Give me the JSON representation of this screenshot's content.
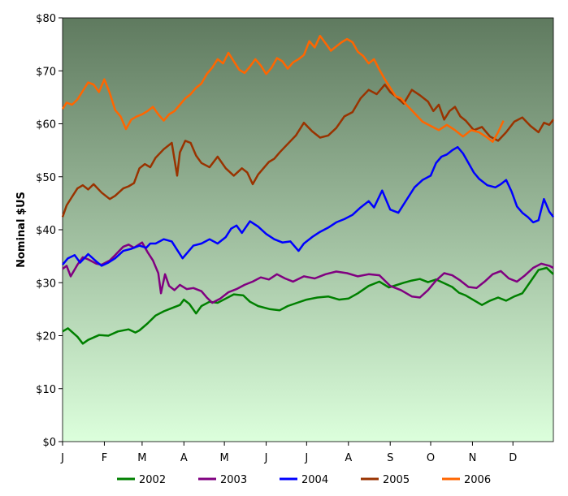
{
  "chart_data": {
    "type": "line",
    "title": "",
    "xlabel": "",
    "ylabel": "Nominal $US",
    "x_range": [
      1,
      365
    ],
    "x_unit": "day of year",
    "ylim": [
      0,
      80
    ],
    "y_ticks": [
      0,
      10,
      20,
      30,
      40,
      50,
      60,
      70,
      80
    ],
    "y_tick_labels": [
      "$0",
      "$10",
      "$20",
      "$30",
      "$40",
      "$50",
      "$60",
      "$70",
      "$80"
    ],
    "x_tick_labels": [
      "J",
      "F",
      "M",
      "A",
      "M",
      "J",
      "J",
      "A",
      "S",
      "O",
      "N",
      "D"
    ],
    "x_tick_days": [
      1,
      32,
      60,
      91,
      121,
      152,
      182,
      213,
      244,
      274,
      305,
      335
    ],
    "grid": false,
    "background_gradient": [
      "#5f7a5f",
      "#dcffdc"
    ],
    "legend": {
      "position": "bottom"
    },
    "series": [
      {
        "name": "2002",
        "color": "#008000",
        "x": [
          1,
          5,
          12,
          16,
          20,
          28,
          35,
          42,
          50,
          55,
          58,
          64,
          70,
          76,
          82,
          88,
          91,
          95,
          100,
          104,
          110,
          116,
          122,
          128,
          135,
          140,
          146,
          155,
          162,
          168,
          175,
          182,
          190,
          198,
          206,
          213,
          220,
          228,
          236,
          243,
          248,
          254,
          260,
          266,
          272,
          278,
          284,
          290,
          295,
          300,
          306,
          312,
          318,
          324,
          330,
          336,
          342,
          348,
          354,
          360,
          365
        ],
        "y": [
          20.8,
          21.4,
          19.8,
          18.5,
          19.2,
          20.1,
          20.0,
          20.8,
          21.2,
          20.6,
          21.0,
          22.3,
          23.8,
          24.6,
          25.2,
          25.8,
          26.8,
          26.0,
          24.2,
          25.6,
          26.4,
          26.2,
          27.0,
          27.8,
          27.6,
          26.4,
          25.6,
          25.0,
          24.8,
          25.6,
          26.2,
          26.8,
          27.2,
          27.4,
          26.8,
          27.0,
          28.0,
          29.4,
          30.2,
          29.1,
          29.5,
          30.0,
          30.4,
          30.7,
          30.1,
          30.6,
          29.9,
          29.2,
          28.1,
          27.6,
          26.7,
          25.8,
          26.6,
          27.2,
          26.6,
          27.4,
          28.0,
          30.2,
          32.4,
          32.8,
          31.6
        ]
      },
      {
        "name": "2003",
        "color": "#800080",
        "x": [
          1,
          4,
          7,
          12,
          16,
          20,
          26,
          30,
          36,
          40,
          46,
          50,
          54,
          60,
          64,
          68,
          72,
          74,
          77,
          80,
          84,
          88,
          93,
          98,
          104,
          108,
          112,
          118,
          124,
          130,
          136,
          142,
          148,
          154,
          160,
          166,
          172,
          180,
          188,
          196,
          204,
          212,
          220,
          228,
          236,
          244,
          252,
          260,
          266,
          272,
          278,
          284,
          290,
          296,
          302,
          308,
          314,
          320,
          326,
          332,
          338,
          344,
          350,
          356,
          362,
          365
        ],
        "y": [
          32.6,
          33.2,
          31.2,
          33.4,
          34.8,
          34.4,
          33.6,
          33.4,
          34.2,
          35.2,
          36.8,
          37.2,
          36.6,
          37.6,
          35.8,
          34.2,
          31.8,
          28.0,
          31.6,
          29.4,
          28.6,
          29.6,
          28.8,
          29.0,
          28.4,
          27.2,
          26.2,
          27.0,
          28.2,
          28.8,
          29.6,
          30.2,
          31.0,
          30.6,
          31.6,
          30.8,
          30.2,
          31.2,
          30.8,
          31.6,
          32.1,
          31.8,
          31.2,
          31.6,
          31.4,
          29.4,
          28.6,
          27.4,
          27.2,
          28.6,
          30.4,
          31.8,
          31.4,
          30.4,
          29.2,
          29.0,
          30.2,
          31.6,
          32.2,
          30.8,
          30.2,
          31.4,
          32.8,
          33.6,
          33.2,
          32.8
        ]
      },
      {
        "name": "2004",
        "color": "#0000ff",
        "x": [
          1,
          5,
          10,
          14,
          20,
          26,
          30,
          35,
          40,
          46,
          52,
          58,
          63,
          66,
          70,
          76,
          82,
          86,
          90,
          94,
          98,
          104,
          110,
          116,
          122,
          126,
          130,
          134,
          140,
          146,
          152,
          158,
          164,
          170,
          176,
          180,
          186,
          192,
          198,
          204,
          210,
          216,
          222,
          228,
          232,
          238,
          244,
          250,
          256,
          262,
          268,
          274,
          278,
          282,
          286,
          290,
          294,
          298,
          302,
          306,
          310,
          316,
          322,
          326,
          330,
          334,
          338,
          342,
          346,
          350,
          354,
          358,
          362,
          365
        ],
        "y": [
          33.4,
          34.6,
          35.2,
          33.8,
          35.4,
          34.0,
          33.2,
          33.8,
          34.6,
          36.0,
          36.4,
          37.0,
          36.6,
          37.4,
          37.4,
          38.2,
          37.8,
          36.2,
          34.6,
          35.8,
          37.0,
          37.4,
          38.2,
          37.4,
          38.6,
          40.2,
          40.8,
          39.4,
          41.6,
          40.6,
          39.2,
          38.2,
          37.6,
          37.8,
          36.0,
          37.4,
          38.6,
          39.6,
          40.4,
          41.4,
          42.0,
          42.8,
          44.2,
          45.4,
          44.2,
          47.4,
          43.8,
          43.2,
          45.6,
          48.0,
          49.4,
          50.2,
          52.6,
          53.8,
          54.2,
          55.0,
          55.6,
          54.4,
          52.6,
          50.8,
          49.6,
          48.4,
          48.0,
          48.6,
          49.4,
          47.2,
          44.4,
          43.2,
          42.4,
          41.4,
          41.8,
          45.8,
          43.4,
          42.4
        ]
      },
      {
        "name": "2005",
        "color": "#993300",
        "x": [
          1,
          4,
          8,
          12,
          16,
          20,
          24,
          30,
          36,
          40,
          46,
          50,
          54,
          58,
          62,
          66,
          70,
          76,
          82,
          86,
          88,
          92,
          96,
          100,
          104,
          110,
          116,
          122,
          128,
          134,
          138,
          142,
          146,
          150,
          154,
          158,
          162,
          168,
          174,
          180,
          186,
          192,
          198,
          204,
          210,
          216,
          222,
          228,
          234,
          240,
          244,
          248,
          254,
          260,
          266,
          272,
          276,
          280,
          284,
          288,
          292,
          296,
          300,
          306,
          312,
          318,
          324,
          330,
          336,
          342,
          348,
          354,
          358,
          362,
          365
        ],
        "y": [
          42.4,
          44.6,
          46.2,
          47.8,
          48.4,
          47.6,
          48.6,
          47.0,
          45.8,
          46.4,
          47.8,
          48.2,
          48.8,
          51.6,
          52.4,
          51.8,
          53.6,
          55.2,
          56.4,
          50.2,
          54.6,
          56.8,
          56.4,
          54.0,
          52.6,
          51.8,
          53.8,
          51.6,
          50.2,
          51.6,
          50.8,
          48.6,
          50.4,
          51.6,
          52.8,
          53.4,
          54.6,
          56.2,
          57.8,
          60.2,
          58.6,
          57.4,
          57.8,
          59.2,
          61.4,
          62.2,
          64.8,
          66.4,
          65.6,
          67.4,
          66.0,
          65.2,
          63.8,
          66.4,
          65.4,
          64.2,
          62.4,
          63.6,
          60.8,
          62.4,
          63.2,
          61.4,
          60.6,
          58.8,
          59.4,
          57.6,
          56.8,
          58.4,
          60.4,
          61.2,
          59.6,
          58.4,
          60.2,
          59.8,
          60.8
        ]
      },
      {
        "name": "2006",
        "color": "#ff6600",
        "x": [
          1,
          4,
          8,
          12,
          16,
          20,
          24,
          28,
          32,
          36,
          40,
          44,
          48,
          52,
          56,
          60,
          64,
          68,
          72,
          76,
          80,
          84,
          88,
          92,
          96,
          100,
          104,
          108,
          112,
          116,
          120,
          124,
          128,
          132,
          136,
          140,
          144,
          148,
          152,
          156,
          160,
          164,
          168,
          172,
          176,
          180,
          184,
          188,
          192,
          196,
          200,
          204,
          208,
          212,
          216,
          220,
          224,
          228,
          232,
          236,
          240,
          244,
          248,
          252,
          256,
          262,
          268,
          274,
          280,
          286,
          292,
          298,
          304,
          310,
          316,
          320,
          324,
          328
        ],
        "y": [
          62.8,
          64.0,
          63.6,
          64.6,
          66.2,
          67.8,
          67.4,
          66.0,
          68.4,
          65.8,
          62.6,
          61.4,
          59.0,
          60.8,
          61.4,
          61.8,
          62.4,
          63.2,
          61.8,
          60.6,
          61.8,
          62.4,
          63.6,
          64.8,
          65.6,
          66.8,
          67.6,
          69.4,
          70.6,
          72.2,
          71.4,
          73.4,
          71.8,
          70.2,
          69.6,
          70.8,
          72.2,
          71.0,
          69.4,
          70.6,
          72.4,
          71.8,
          70.4,
          71.6,
          72.2,
          73.0,
          75.6,
          74.4,
          76.6,
          75.2,
          73.8,
          74.6,
          75.4,
          76.0,
          75.4,
          73.6,
          72.8,
          71.4,
          72.2,
          70.2,
          68.4,
          66.8,
          65.2,
          64.8,
          63.6,
          62.0,
          60.4,
          59.6,
          58.8,
          59.8,
          58.8,
          57.6,
          58.8,
          58.4,
          57.4,
          56.6,
          58.4,
          60.6
        ]
      }
    ]
  }
}
